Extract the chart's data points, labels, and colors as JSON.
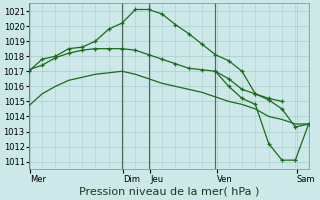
{
  "bg_color": "#cce8e8",
  "grid_color": "#aacccc",
  "line_color": "#1a6b1a",
  "vline_color": "#556655",
  "xlabel": "Pression niveau de la mer( hPa )",
  "xlabel_fontsize": 8,
  "ylim": [
    1010.5,
    1021.5
  ],
  "yticks": [
    1011,
    1012,
    1013,
    1014,
    1015,
    1016,
    1017,
    1018,
    1019,
    1020,
    1021
  ],
  "xlim": [
    0,
    10.5
  ],
  "xtick_labels_text": [
    "Mer",
    "Dim",
    "Jeu",
    "Ven",
    "Sam"
  ],
  "xtick_labels_pos": [
    0.05,
    3.55,
    4.55,
    7.05,
    10.05
  ],
  "vlines": [
    0.0,
    3.5,
    4.5,
    7.0,
    10.5
  ],
  "series1_x": [
    0.0,
    0.5,
    1.0,
    1.5,
    2.0,
    2.5,
    3.0,
    3.5,
    4.0,
    4.5,
    5.0,
    5.5,
    6.0,
    6.5,
    7.0,
    7.5,
    8.0,
    8.5,
    9.0,
    9.5,
    10.0,
    10.5
  ],
  "series1_y": [
    1017.0,
    1017.8,
    1018.0,
    1018.5,
    1018.6,
    1019.0,
    1019.8,
    1020.2,
    1021.1,
    1021.1,
    1020.8,
    1020.1,
    1019.5,
    1018.8,
    1018.1,
    1017.7,
    1017.0,
    1015.5,
    1015.1,
    1014.5,
    1013.3,
    1013.5
  ],
  "series2_x": [
    0.0,
    0.5,
    1.0,
    1.5,
    2.0,
    2.5,
    3.0,
    3.5,
    4.0,
    4.5,
    5.0,
    5.5,
    6.0,
    6.5,
    7.0,
    7.5,
    8.0,
    8.5,
    9.0,
    9.5
  ],
  "series2_y": [
    1017.1,
    1017.4,
    1017.9,
    1018.2,
    1018.4,
    1018.5,
    1018.5,
    1018.5,
    1018.4,
    1018.1,
    1017.8,
    1017.5,
    1017.2,
    1017.1,
    1017.0,
    1016.5,
    1015.8,
    1015.5,
    1015.2,
    1015.0
  ],
  "series3_x": [
    0.0,
    0.5,
    1.0,
    1.5,
    2.0,
    2.5,
    3.0,
    3.5,
    4.0,
    4.5,
    5.0,
    5.5,
    6.0,
    6.5,
    7.0,
    7.5,
    8.0,
    8.5,
    9.0,
    9.5,
    10.0,
    10.5
  ],
  "series3_y": [
    1014.7,
    1015.5,
    1016.0,
    1016.4,
    1016.6,
    1016.8,
    1016.9,
    1017.0,
    1016.8,
    1016.5,
    1016.2,
    1016.0,
    1015.8,
    1015.6,
    1015.3,
    1015.0,
    1014.8,
    1014.5,
    1014.0,
    1013.8,
    1013.5,
    1013.5
  ],
  "series4_x": [
    7.0,
    7.5,
    8.0,
    8.5,
    9.0,
    9.5,
    10.0,
    10.5
  ],
  "series4_y": [
    1017.0,
    1016.0,
    1015.2,
    1014.8,
    1012.2,
    1011.1,
    1011.1,
    1013.5
  ]
}
